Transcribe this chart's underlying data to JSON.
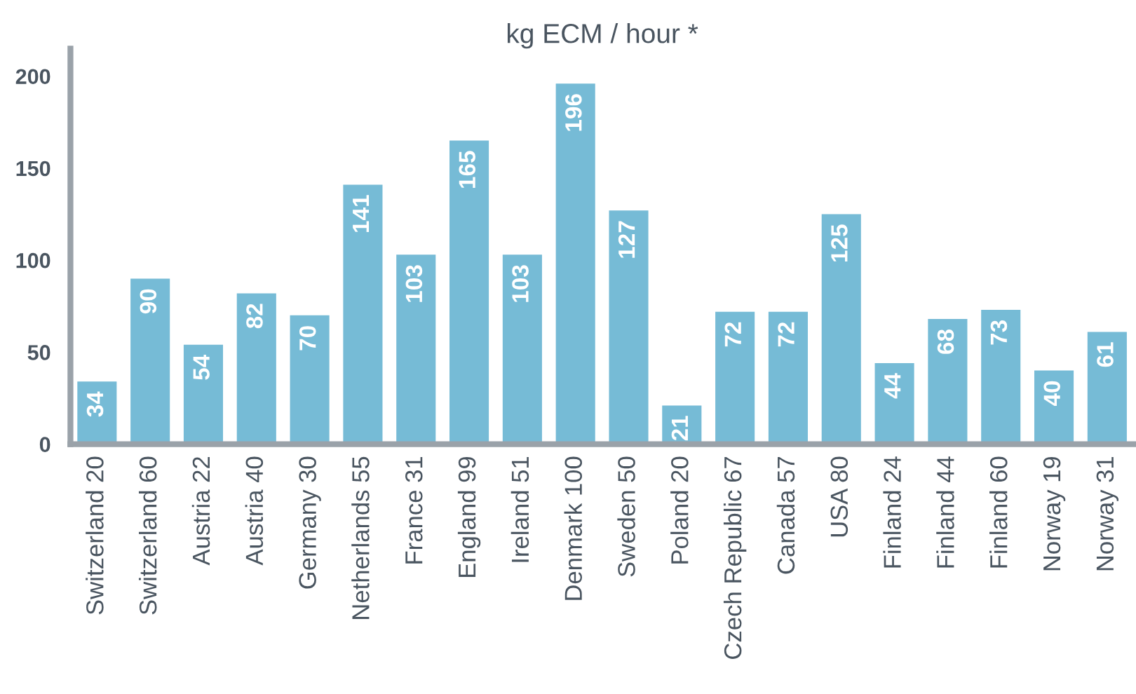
{
  "chart_data": {
    "type": "bar",
    "subtitle": "kg ECM / hour *",
    "categories": [
      "Switzerland 20",
      "Switzerland 60",
      "Austria 22",
      "Austria 40",
      "Germany 30",
      "Netherlands 55",
      "France 31",
      "England 99",
      "Ireland 51",
      "Denmark 100",
      "Sweden 50",
      "Poland 20",
      "Czech Republic 67",
      "Canada 57",
      "USA 80",
      "Finland 24",
      "Finland 44",
      "Finland 60",
      "Norway 19",
      "Norway 31"
    ],
    "values": [
      34,
      90,
      54,
      82,
      70,
      141,
      103,
      165,
      103,
      196,
      127,
      21,
      72,
      72,
      125,
      44,
      68,
      73,
      40,
      61
    ],
    "color": "#76bbd6",
    "ylim": [
      0,
      215
    ],
    "yticks": [
      0,
      50,
      100,
      150,
      200
    ],
    "data_labels": true
  }
}
